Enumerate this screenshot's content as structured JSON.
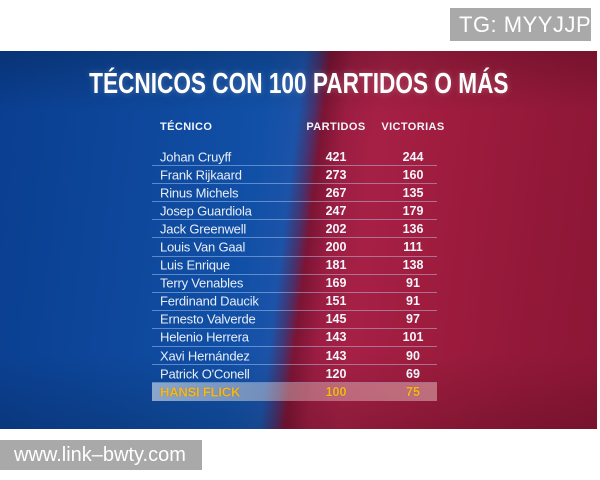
{
  "overlay": {
    "tg_badge": "TG: MYYJJPP",
    "site_url": "www.link–bwty.com"
  },
  "chart_data": {
    "type": "table",
    "title": "TÉCNICOS CON 100 PARTIDOS O MÁS",
    "columns": [
      "TÉCNICO",
      "PARTIDOS",
      "VICTORIAS"
    ],
    "rows": [
      [
        "Johan Cruyff",
        "421",
        "244"
      ],
      [
        "Frank Rijkaard",
        "273",
        "160"
      ],
      [
        "Rinus Michels",
        "267",
        "135"
      ],
      [
        "Josep Guardiola",
        "247",
        "179"
      ],
      [
        "Jack Greenwell",
        "202",
        "136"
      ],
      [
        "Louis Van Gaal",
        "200",
        "111"
      ],
      [
        "Luis Enrique",
        "181",
        "138"
      ],
      [
        "Terry Venables",
        "169",
        "91"
      ],
      [
        "Ferdinand Daucik",
        "151",
        "91"
      ],
      [
        "Ernesto Valverde",
        "145",
        "97"
      ],
      [
        "Helenio Herrera",
        "143",
        "101"
      ],
      [
        "Xavi Hernández",
        "143",
        "90"
      ],
      [
        "Patrick O'Conell",
        "120",
        "69"
      ],
      [
        "HANSI FLICK",
        "100",
        "75"
      ]
    ],
    "highlight_index": 13,
    "highlight_row_name": "HANSI FLICK",
    "colors": {
      "blue": "#1150a7",
      "red": "#9e1c3e",
      "highlight_text": "#f6b719",
      "divider": "rgba(186,214,255,0.45)",
      "watermark_bg": "#a9a9a9"
    }
  }
}
